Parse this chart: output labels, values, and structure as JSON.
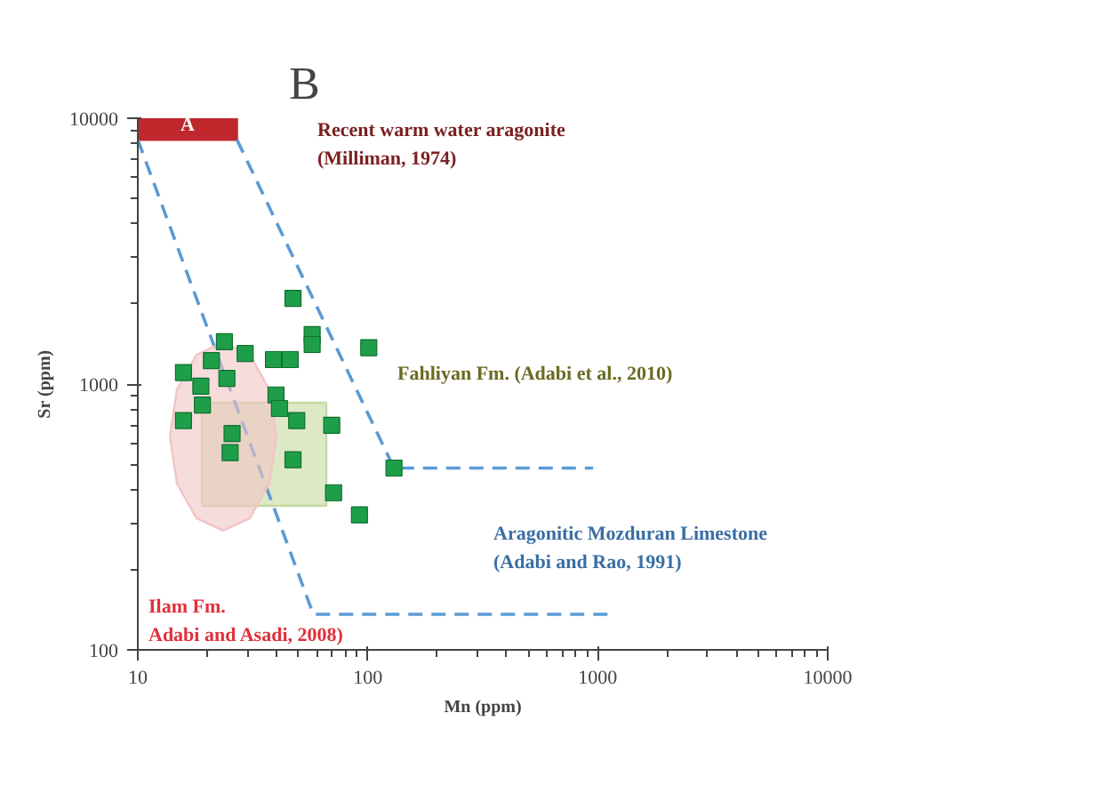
{
  "chart_data": {
    "type": "scatter",
    "title": "B",
    "xlabel": "Mn (ppm)",
    "ylabel": "Sr (ppm)",
    "log": "xy",
    "grid": false,
    "xlim": [
      10,
      10000
    ],
    "ylim": [
      100,
      10000
    ],
    "xticks": [
      10,
      100,
      1000,
      10000
    ],
    "yticks": [
      100,
      1000,
      10000
    ],
    "series": [
      {
        "type": "area",
        "marker": "none",
        "color": "#c0282d",
        "x": [
          10,
          27,
          27,
          10
        ],
        "values": [
          8300,
          8300,
          10000,
          10000
        ]
      },
      {
        "type": "area",
        "marker": "none",
        "color": "#c5d9a0",
        "x": [
          19,
          66,
          66,
          19
        ],
        "values": [
          851,
          851,
          348,
          348
        ]
      },
      {
        "type": "line",
        "line_style": "dashed",
        "marker": "none",
        "color": "#5b9bd5",
        "x": [
          10,
          58,
          1140
        ],
        "values": [
          8300,
          136,
          136
        ]
      },
      {
        "type": "line",
        "line_style": "dashed",
        "marker": "none",
        "color": "#5b9bd5",
        "x": [
          27,
          130,
          955
        ],
        "values": [
          8300,
          483,
          483
        ]
      },
      {
        "type": "area",
        "marker": "none",
        "color": "#f2c4c4",
        "x": [
          40.1,
          37.3,
          30.7,
          23.5,
          18.0,
          14.8,
          13.8,
          14.8,
          18.0,
          23.5,
          30.7,
          37.3
        ],
        "values": [
          635,
          955,
          1288,
          1435,
          1288,
          955,
          635,
          422,
          313,
          281,
          313,
          422
        ]
      },
      {
        "marker": "square",
        "color": "#1e9e48",
        "x": [
          47.3,
          57.3,
          57.3,
          23.8,
          29.3,
          38.9,
          46.0,
          101,
          15.8,
          20.9,
          18.8,
          24.4,
          39.9,
          19.1,
          41.3,
          15.8,
          49.1,
          69.7,
          25.7,
          25.2,
          47.3,
          71,
          92,
          130
        ],
        "values": [
          2100,
          1535,
          1409,
          1443,
          1303,
          1236,
          1236,
          1371,
          1105,
          1225,
          982,
          1050,
          910,
          834,
          809,
          729,
          729,
          700,
          652,
          552,
          519,
          390,
          322,
          483
        ]
      }
    ],
    "annotations": [
      "A",
      "Recent warm water aragonite\n(Milliman, 1974)",
      "Fahliyan Fm. (Adabi et al., 2010)",
      "Aragonitic Mozduran Limestone\n(Adabi and Rao, 1991)",
      "Ilam Fm.\nAdabi and Asadi, 2008)"
    ]
  }
}
